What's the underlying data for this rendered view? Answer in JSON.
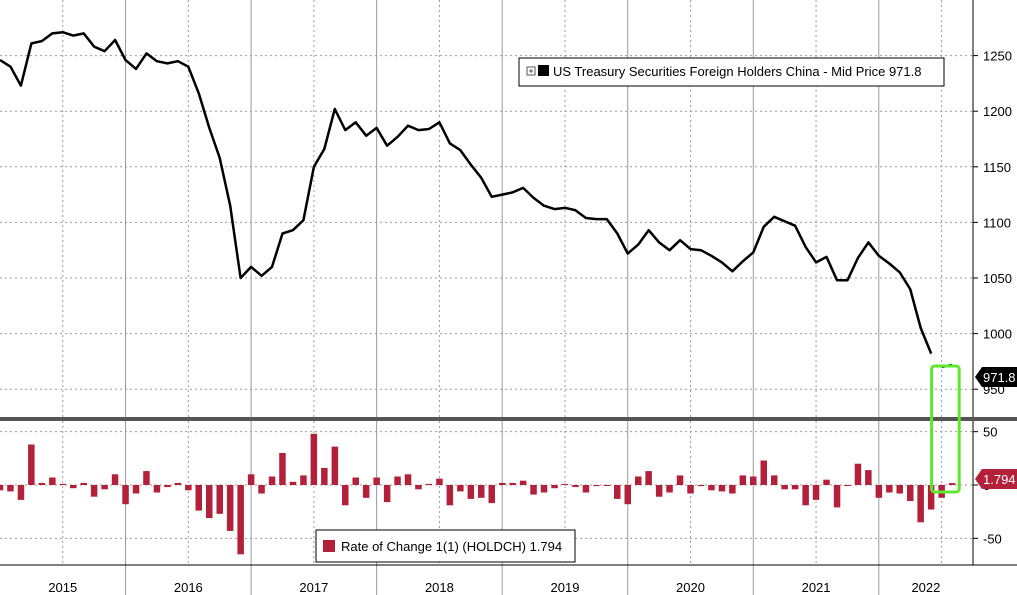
{
  "chart_data": [
    {
      "type": "line",
      "panel": "top",
      "legend_label": "US Treasury Securities Foreign Holders China - Mid Price 971.8",
      "last_value_label": "971.8",
      "last_value": 971.8,
      "series_color": "#000000",
      "ylim": [
        925,
        1300
      ],
      "yticks": [
        950,
        1000,
        1050,
        1100,
        1150,
        1200,
        1250
      ],
      "ytick_labels": [
        "950",
        "1000",
        "1050",
        "1100",
        "1150",
        "1200",
        "1250"
      ],
      "x_start": "2015-01",
      "x": [
        2015.0,
        2015.0833,
        2015.1667,
        2015.25,
        2015.3333,
        2015.4167,
        2015.5,
        2015.5833,
        2015.6667,
        2015.75,
        2015.8333,
        2015.9167,
        2016.0,
        2016.0833,
        2016.1667,
        2016.25,
        2016.3333,
        2016.4167,
        2016.5,
        2016.5833,
        2016.6667,
        2016.75,
        2016.8333,
        2016.9167,
        2017.0,
        2017.0833,
        2017.1667,
        2017.25,
        2017.3333,
        2017.4167,
        2017.5,
        2017.5833,
        2017.6667,
        2017.75,
        2017.8333,
        2017.9167,
        2018.0,
        2018.0833,
        2018.1667,
        2018.25,
        2018.3333,
        2018.4167,
        2018.5,
        2018.5833,
        2018.6667,
        2018.75,
        2018.8333,
        2018.9167,
        2019.0,
        2019.0833,
        2019.1667,
        2019.25,
        2019.3333,
        2019.4167,
        2019.5,
        2019.5833,
        2019.6667,
        2019.75,
        2019.8333,
        2019.9167,
        2020.0,
        2020.0833,
        2020.1667,
        2020.25,
        2020.3333,
        2020.4167,
        2020.5,
        2020.5833,
        2020.6667,
        2020.75,
        2020.8333,
        2020.9167,
        2021.0,
        2021.0833,
        2021.1667,
        2021.25,
        2021.3333,
        2021.4167,
        2021.5,
        2021.5833,
        2021.6667,
        2021.75,
        2021.8333,
        2021.9167,
        2022.0,
        2022.0833,
        2022.1667,
        2022.25,
        2022.3333,
        2022.4167
      ],
      "values": [
        1246,
        1240,
        1223,
        1261,
        1263,
        1270,
        1271,
        1268,
        1270,
        1258,
        1254,
        1264,
        1246,
        1238,
        1252,
        1245,
        1243,
        1245,
        1240,
        1216,
        1185,
        1158,
        1115,
        1050,
        1060,
        1052,
        1060,
        1090,
        1093,
        1102,
        1150,
        1166,
        1202,
        1183,
        1190,
        1178,
        1185,
        1169,
        1177,
        1187,
        1183,
        1184,
        1190,
        1171,
        1165,
        1152,
        1140,
        1123,
        1125,
        1127,
        1131,
        1122,
        1115,
        1112,
        1113,
        1111,
        1104,
        1103,
        1103,
        1090,
        1072,
        1080,
        1093,
        1082,
        1075,
        1084,
        1076,
        1075,
        1070,
        1064,
        1056,
        1065,
        1073,
        1096,
        1105,
        1101,
        1097,
        1078,
        1064,
        1069,
        1048,
        1048,
        1068,
        1082,
        1070,
        1063,
        1055,
        1040,
        1005,
        982
      ],
      "recent_x": [
        2022.5,
        2022.5833
      ],
      "recent_values": [
        970,
        971.8
      ]
    },
    {
      "type": "bar",
      "panel": "bottom",
      "legend_label": "Rate of Change 1(1) (HOLDCH) 1.794",
      "last_value_label": "1.794",
      "last_value": 1.794,
      "series_color": "#b3203a",
      "ylim": [
        -75,
        60
      ],
      "yticks": [
        -50,
        0,
        50
      ],
      "ytick_labels": [
        "-50",
        "0",
        "50"
      ],
      "x": [
        2015.0,
        2015.0833,
        2015.1667,
        2015.25,
        2015.3333,
        2015.4167,
        2015.5,
        2015.5833,
        2015.6667,
        2015.75,
        2015.8333,
        2015.9167,
        2016.0,
        2016.0833,
        2016.1667,
        2016.25,
        2016.3333,
        2016.4167,
        2016.5,
        2016.5833,
        2016.6667,
        2016.75,
        2016.8333,
        2016.9167,
        2017.0,
        2017.0833,
        2017.1667,
        2017.25,
        2017.3333,
        2017.4167,
        2017.5,
        2017.5833,
        2017.6667,
        2017.75,
        2017.8333,
        2017.9167,
        2018.0,
        2018.0833,
        2018.1667,
        2018.25,
        2018.3333,
        2018.4167,
        2018.5,
        2018.5833,
        2018.6667,
        2018.75,
        2018.8333,
        2018.9167,
        2019.0,
        2019.0833,
        2019.1667,
        2019.25,
        2019.3333,
        2019.4167,
        2019.5,
        2019.5833,
        2019.6667,
        2019.75,
        2019.8333,
        2019.9167,
        2020.0,
        2020.0833,
        2020.1667,
        2020.25,
        2020.3333,
        2020.4167,
        2020.5,
        2020.5833,
        2020.6667,
        2020.75,
        2020.8333,
        2020.9167,
        2021.0,
        2021.0833,
        2021.1667,
        2021.25,
        2021.3333,
        2021.4167,
        2021.5,
        2021.5833,
        2021.6667,
        2021.75,
        2021.8333,
        2021.9167,
        2022.0,
        2022.0833,
        2022.1667,
        2022.25,
        2022.3333,
        2022.4167,
        2022.5,
        2022.5833
      ],
      "values": [
        -5,
        -6,
        -14,
        38,
        2,
        7,
        1,
        -3,
        2,
        -11,
        -4,
        10,
        -18,
        -8,
        13,
        -7,
        -2,
        2,
        -5,
        -24,
        -31,
        -27,
        -43,
        -65,
        10,
        -8,
        8,
        30,
        3,
        9,
        48,
        16,
        36,
        -19,
        7,
        -12,
        7,
        -16,
        8,
        10,
        -4,
        1,
        6,
        -19,
        -6,
        -13,
        -12,
        -17,
        2,
        2,
        4,
        -9,
        -7,
        -3,
        1,
        -2,
        -7,
        -1,
        0,
        -13,
        -18,
        8,
        13,
        -11,
        -7,
        9,
        -8,
        -1,
        -5,
        -6,
        -8,
        9,
        8,
        23,
        9,
        -4,
        -4,
        -19,
        -14,
        5,
        -21,
        0,
        20,
        14,
        -12,
        -7,
        -8,
        -15,
        -35,
        -23,
        -12,
        1.794
      ]
    }
  ],
  "x_axis": {
    "tick_labels": [
      "2015",
      "2016",
      "2017",
      "2018",
      "2019",
      "2020",
      "2021",
      "2022"
    ],
    "min": 2015.0,
    "max": 2022.75
  },
  "highlight": {
    "color": "#5ee82a",
    "x_from": 2022.42,
    "x_to": 2022.64
  },
  "colors": {
    "grid": "#9a9a9a",
    "panel_separator": "#555555",
    "marker_bg": "#000000",
    "bar": "#b3203a"
  }
}
